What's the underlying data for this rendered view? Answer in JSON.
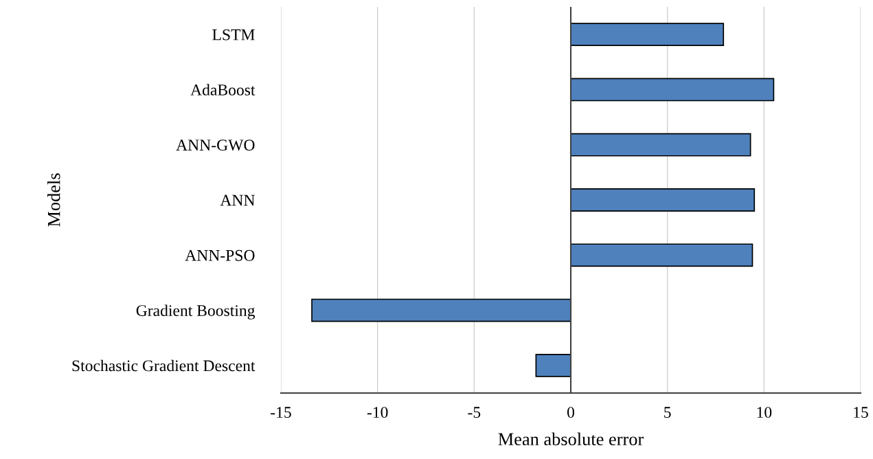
{
  "chart_data": {
    "type": "bar",
    "orientation": "horizontal",
    "xlabel": "Mean absolute error",
    "ylabel": "Models",
    "categories": [
      "LSTM",
      "AdaBoost",
      "ANN-GWO",
      "ANN",
      "ANN-PSO",
      "Gradient Boosting",
      "Stochastic Gradient Descent"
    ],
    "values": [
      7.9,
      10.5,
      9.3,
      9.5,
      9.4,
      -13.4,
      -1.8
    ],
    "color": "#4f81bd",
    "xlim": [
      -15,
      15
    ],
    "xticks": [
      -15,
      -10,
      -5,
      0,
      5,
      10,
      15
    ],
    "grid": "x"
  }
}
